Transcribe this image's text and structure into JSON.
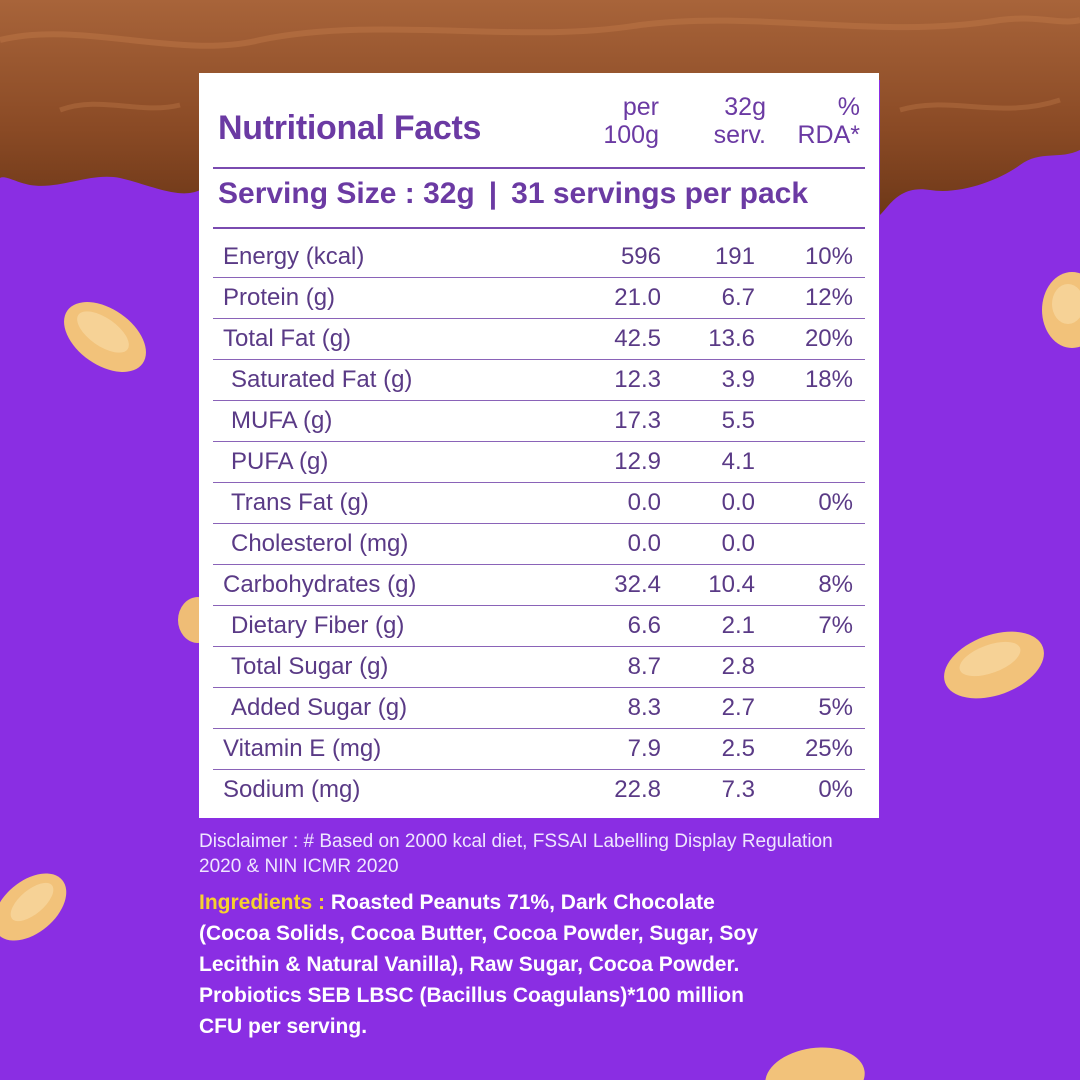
{
  "header": {
    "title": "Nutritional Facts",
    "col1_line1": "per",
    "col1_line2": "100g",
    "col2_line1": "32g",
    "col2_line2": "serv.",
    "col3_line1": "%",
    "col3_line2": "RDA*"
  },
  "serving": {
    "size": "Serving Size : 32g",
    "separator": "|",
    "per_pack": "31 servings per pack"
  },
  "rows": [
    {
      "label": "Energy (kcal)",
      "per100": "596",
      "serv": "191",
      "rda": "10%"
    },
    {
      "label": "Protein (g)",
      "per100": "21.0",
      "serv": "6.7",
      "rda": "12%"
    },
    {
      "label": "Total Fat (g)",
      "per100": "42.5",
      "serv": "13.6",
      "rda": "20%"
    },
    {
      "label": "Saturated Fat (g)",
      "per100": "12.3",
      "serv": "3.9",
      "rda": "18%"
    },
    {
      "label": "MUFA (g)",
      "per100": "17.3",
      "serv": "5.5",
      "rda": ""
    },
    {
      "label": "PUFA (g)",
      "per100": "12.9",
      "serv": "4.1",
      "rda": ""
    },
    {
      "label": "Trans Fat (g)",
      "per100": "0.0",
      "serv": "0.0",
      "rda": "0%"
    },
    {
      "label": "Cholesterol (mg)",
      "per100": "0.0",
      "serv": "0.0",
      "rda": ""
    },
    {
      "label": "Carbohydrates (g)",
      "per100": "32.4",
      "serv": "10.4",
      "rda": "8%"
    },
    {
      "label": "Dietary Fiber (g)",
      "per100": "6.6",
      "serv": "2.1",
      "rda": "7%"
    },
    {
      "label": "Total Sugar (g)",
      "per100": "8.7",
      "serv": "2.8",
      "rda": ""
    },
    {
      "label": "Added Sugar (g)",
      "per100": "8.3",
      "serv": "2.7",
      "rda": "5%"
    },
    {
      "label": "Vitamin E (mg)",
      "per100": "7.9",
      "serv": "2.5",
      "rda": "25%"
    },
    {
      "label": "Sodium (mg)",
      "per100": "22.8",
      "serv": "7.3",
      "rda": "0%"
    }
  ],
  "disclaimer": "Disclaimer : # Based on  2000 kcal diet, FSSAI Labelling Display Regulation 2020 & NIN ICMR 2020",
  "ingredients": {
    "label": "Ingredients :",
    "text": "Roasted Peanuts 71%, Dark Chocolate (Cocoa Solids, Cocoa Butter, Cocoa Powder, Sugar, Soy Lecithin & Natural Vanilla), Raw Sugar, Cocoa Powder. Probiotics SEB LBSC (Bacillus Coagulans)*100 million CFU per serving."
  },
  "colors": {
    "background": "#8a2ee3",
    "panel": "#ffffff",
    "text_purple": "#6b3aa3",
    "ingredients_label": "#f7d22d",
    "chocolate": "#8a4a25",
    "peanut": "#f2c27a"
  }
}
